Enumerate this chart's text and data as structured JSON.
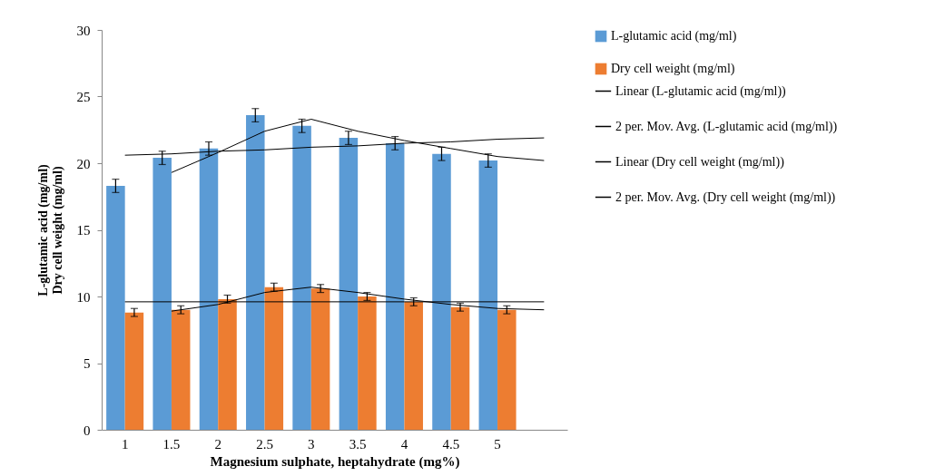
{
  "chart_data": {
    "type": "bar",
    "categories": [
      "1",
      "1.5",
      "2",
      "2.5",
      "3",
      "3.5",
      "4",
      "4.5",
      "5",
      null
    ],
    "xlabel": "Magnesium sulphate, heptahydrate (mg%)",
    "ylabel": "L-glutamic acid (mg/ml)\nDry cell weight (mg/ml)",
    "ylim": [
      0,
      30
    ],
    "yticks": [
      0,
      5,
      10,
      15,
      20,
      25,
      30
    ],
    "grid": false,
    "legend": "right",
    "series": [
      {
        "name": "L-glutamic acid (mg/ml)",
        "color": "#5b9bd5",
        "values": [
          18.3,
          20.4,
          21.1,
          23.6,
          22.8,
          21.9,
          21.5,
          20.7,
          20.2,
          null
        ],
        "errors": [
          0.5,
          0.5,
          0.5,
          0.5,
          0.5,
          0.5,
          0.5,
          0.5,
          0.5,
          null
        ]
      },
      {
        "name": "Dry cell weight (mg/ml)",
        "color": "#ed7d31",
        "values": [
          8.8,
          9.0,
          9.8,
          10.7,
          10.6,
          10.0,
          9.6,
          9.2,
          9.0,
          null
        ],
        "errors": [
          0.3,
          0.3,
          0.3,
          0.3,
          0.3,
          0.3,
          0.3,
          0.3,
          0.3,
          null
        ]
      },
      {
        "name": "Linear (L-glutamic acid (mg/ml))",
        "type": "line",
        "color": "#000000",
        "values": [
          20.6,
          20.7,
          20.9,
          21.0,
          21.2,
          21.3,
          21.5,
          21.6,
          21.8,
          21.9
        ]
      },
      {
        "name": "2 per. Mov. Avg. (L-glutamic acid (mg/ml))",
        "type": "line",
        "color": "#000000",
        "values": [
          null,
          19.3,
          20.8,
          22.4,
          23.3,
          22.4,
          21.7,
          21.1,
          20.5,
          20.2
        ]
      },
      {
        "name": "Linear (Dry cell weight (mg/ml))",
        "type": "line",
        "color": "#000000",
        "values": [
          9.6,
          9.6,
          9.6,
          9.6,
          9.6,
          9.6,
          9.6,
          9.6,
          9.6,
          9.6
        ]
      },
      {
        "name": "2 per. Mov. Avg. (Dry cell weight (mg/ml))",
        "type": "line",
        "color": "#000000",
        "values": [
          null,
          8.9,
          9.4,
          10.3,
          10.7,
          10.3,
          9.8,
          9.4,
          9.1,
          9.0
        ]
      }
    ]
  }
}
